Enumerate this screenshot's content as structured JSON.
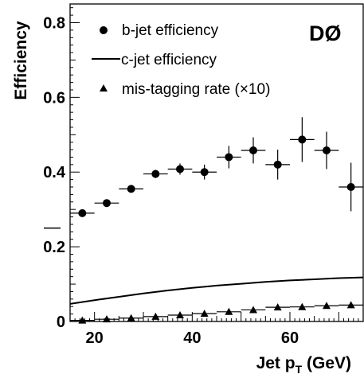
{
  "chart_data": {
    "type": "scatter",
    "experiment_label": "DØ",
    "xlabel": {
      "text": "Jet p",
      "sub": "T",
      "suffix": " (GeV)"
    },
    "ylabel": "Efficiency",
    "xlim": [
      15,
      75
    ],
    "ylim": [
      0,
      0.85
    ],
    "x_ticks": [
      20,
      40,
      60
    ],
    "y_ticks": [
      0,
      0.2,
      0.4,
      0.6,
      0.8
    ],
    "y_tick_labels": [
      "0",
      "0.2",
      "0.4",
      "0.6",
      "0.8"
    ],
    "legend": {
      "position": "top-left",
      "entries": [
        {
          "marker": "circle",
          "label": "b-jet efficiency"
        },
        {
          "marker": "line",
          "label": "c-jet efficiency"
        },
        {
          "marker": "triangle",
          "label": "mis-tagging rate (×10)"
        }
      ]
    },
    "series": [
      {
        "name": "b-jet efficiency",
        "marker": "circle",
        "x": [
          17.5,
          22.5,
          27.5,
          32.5,
          37.5,
          42.5,
          47.5,
          52.5,
          57.5,
          62.5,
          67.5,
          72.5
        ],
        "y": [
          0.29,
          0.317,
          0.355,
          0.395,
          0.408,
          0.4,
          0.44,
          0.458,
          0.42,
          0.487,
          0.458,
          0.36
        ],
        "x_err": 2.5,
        "y_err": [
          0.006,
          0.007,
          0.009,
          0.011,
          0.015,
          0.02,
          0.03,
          0.035,
          0.04,
          0.06,
          0.05,
          0.065
        ]
      },
      {
        "name": "c-jet efficiency",
        "marker": "line",
        "x": [
          15,
          20,
          25,
          30,
          35,
          40,
          45,
          50,
          55,
          60,
          65,
          70,
          75
        ],
        "y": [
          0.047,
          0.057,
          0.066,
          0.075,
          0.083,
          0.09,
          0.096,
          0.101,
          0.106,
          0.11,
          0.113,
          0.116,
          0.118
        ]
      },
      {
        "name": "mis-tagging rate (×10)",
        "marker": "triangle",
        "x": [
          17.5,
          22.5,
          27.5,
          32.5,
          37.5,
          42.5,
          47.5,
          52.5,
          57.5,
          62.5,
          67.5,
          72.5
        ],
        "y": [
          0.003,
          0.006,
          0.009,
          0.013,
          0.017,
          0.021,
          0.026,
          0.031,
          0.038,
          0.039,
          0.042,
          0.044
        ],
        "x_err": 2.5
      }
    ],
    "extra_marks": [
      {
        "name": "stray-marker",
        "x": 12,
        "y": 0.25
      }
    ]
  }
}
